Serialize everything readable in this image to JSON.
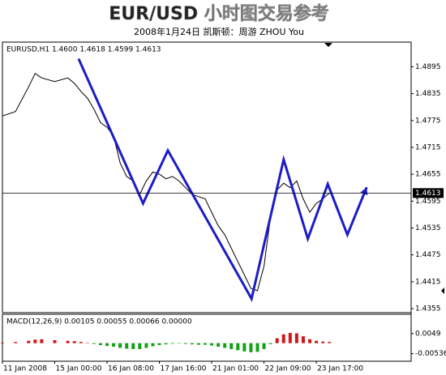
{
  "title": "EUR/USD 小时图交易参考",
  "subtitle": "2008年1月24日   凯斯顿：周游 ZHOU You",
  "chart_data": [
    {
      "type": "line",
      "label": "EURUSD,H1  1.4600 1.4618 1.4599 1.4613",
      "x": [
        0,
        4,
        8,
        10,
        12,
        16,
        20,
        22,
        24,
        26,
        28,
        30,
        32,
        34,
        36,
        38,
        40,
        42,
        44,
        46,
        48,
        50,
        52,
        54,
        56,
        58,
        60,
        62,
        64,
        66,
        68,
        70,
        72,
        74,
        76,
        78,
        80,
        82,
        84,
        86,
        88,
        90,
        92,
        94,
        96,
        98,
        100
      ],
      "series": [
        {
          "color": "#000000",
          "values": [
            1.4785,
            1.4795,
            1.485,
            1.488,
            1.487,
            1.4862,
            1.487,
            1.4858,
            1.484,
            1.4825,
            1.48,
            1.477,
            1.476,
            1.474,
            1.468,
            1.465,
            1.464,
            1.461,
            1.464,
            1.466,
            1.4655,
            1.4645,
            1.465,
            1.464,
            1.4625,
            1.461,
            1.4605,
            1.46,
            1.457,
            1.454,
            1.452,
            1.449,
            1.446,
            1.443,
            1.44,
            1.4395,
            1.445,
            1.456,
            1.462,
            1.4635,
            1.4625,
            1.464,
            1.46,
            1.457,
            1.459,
            1.46,
            1.4613
          ]
        },
        {
          "color": "#1c1cc8",
          "x": [
            23.3,
            43,
            50.6,
            76.2,
            86,
            93.4,
            99.5,
            105.5,
            111.4
          ],
          "values": [
            1.4913,
            1.459,
            1.4708,
            1.4377,
            1.4688,
            1.4511,
            1.4633,
            1.452,
            1.4626
          ]
        }
      ],
      "last_price": 1.4613,
      "xlim": [
        0,
        125
      ],
      "ylim": [
        1.4346,
        1.495
      ],
      "yticks": [
        1.4895,
        1.4835,
        1.4775,
        1.4715,
        1.4655,
        1.4595,
        1.4535,
        1.4475,
        1.4415,
        1.4355
      ]
    },
    {
      "type": "bar",
      "label": "MACD(12,26,9) 0.00105 0.00055 0.00066 0.00000",
      "x": [
        0,
        4,
        8,
        10,
        12,
        16,
        20,
        22,
        24,
        26,
        28,
        30,
        32,
        34,
        36,
        38,
        40,
        42,
        44,
        46,
        48,
        50,
        52,
        54,
        56,
        58,
        60,
        62,
        64,
        66,
        68,
        70,
        72,
        74,
        76,
        78,
        80,
        82,
        84,
        86,
        88,
        90,
        92,
        94,
        96,
        98,
        100
      ],
      "values": [
        0.0003,
        0.0006,
        0.0012,
        0.0018,
        0.002,
        0.0015,
        0.0012,
        0.001,
        0.0006,
        0.0002,
        -0.0004,
        -0.001,
        -0.0014,
        -0.0018,
        -0.0024,
        -0.0028,
        -0.003,
        -0.003,
        -0.0024,
        -0.0016,
        -0.001,
        -0.0006,
        -0.0003,
        -0.0002,
        -0.0004,
        -0.0006,
        -0.0008,
        -0.0008,
        -0.0012,
        -0.0018,
        -0.0024,
        -0.003,
        -0.0036,
        -0.0042,
        -0.0046,
        -0.0044,
        -0.003,
        -0.0005,
        0.0025,
        0.0045,
        0.0052,
        0.005,
        0.0035,
        0.002,
        0.0012,
        0.0008,
        0.0006
      ],
      "colors": {
        "up": "#d01818",
        "down": "#16a016"
      },
      "xlim": [
        0,
        125
      ],
      "ylim": [
        -0.0092,
        0.0147
      ],
      "yticks": [
        0.0049,
        -0.00536
      ],
      "xticks": [
        {
          "value": 0,
          "label": "11 Jan 2008"
        },
        {
          "value": 16,
          "label": "15 Jan 00:00"
        },
        {
          "value": 32,
          "label": "16 Jan 08:00"
        },
        {
          "value": 48,
          "label": "17 Jan 16:00"
        },
        {
          "value": 64,
          "label": "21 Jan 01:00"
        },
        {
          "value": 80,
          "label": "22 Jan 09:00"
        },
        {
          "value": 96,
          "label": "23 Jan 17:00"
        }
      ]
    }
  ]
}
